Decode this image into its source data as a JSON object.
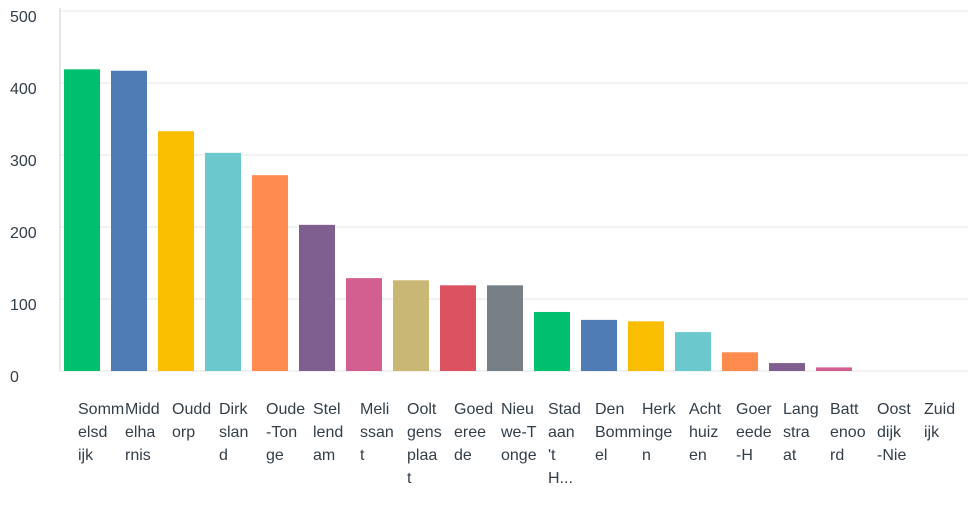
{
  "chart_data": {
    "type": "bar",
    "categories": [
      "Sommelsdijk",
      "Middelharnis",
      "Ouddorp",
      "Dirksland",
      "Oude-Tonge",
      "Stellendam",
      "Melissant",
      "Ooltgensplaat",
      "Goedereede",
      "Nieuwe-Tonge",
      "Stad aan 't H...",
      "Den Bommel",
      "Herkingen",
      "Achthuizen",
      "Goereede-H",
      "Langstraat",
      "Battenoord",
      "Oostdijk-Nie",
      "Zuidijk"
    ],
    "values": [
      419,
      417,
      333,
      303,
      272,
      203,
      129,
      126,
      119,
      119,
      82,
      71,
      69,
      54,
      26,
      11,
      5,
      0,
      0
    ],
    "colors": [
      "#00bf6f",
      "#507cb6",
      "#f9be00",
      "#6bc8cd",
      "#ff8b4f",
      "#7f5f90",
      "#d25f90",
      "#c9b875",
      "#dc5260",
      "#768086",
      "#00bf6f",
      "#507cb6",
      "#f9be00",
      "#6bc8cd",
      "#ff8b4f",
      "#7f5f90",
      "#d25f90",
      "#c9b875",
      "#dc5260"
    ],
    "ylim": [
      0,
      500
    ],
    "yticks": [
      0,
      100,
      200,
      300,
      400,
      500
    ],
    "grid": true
  }
}
